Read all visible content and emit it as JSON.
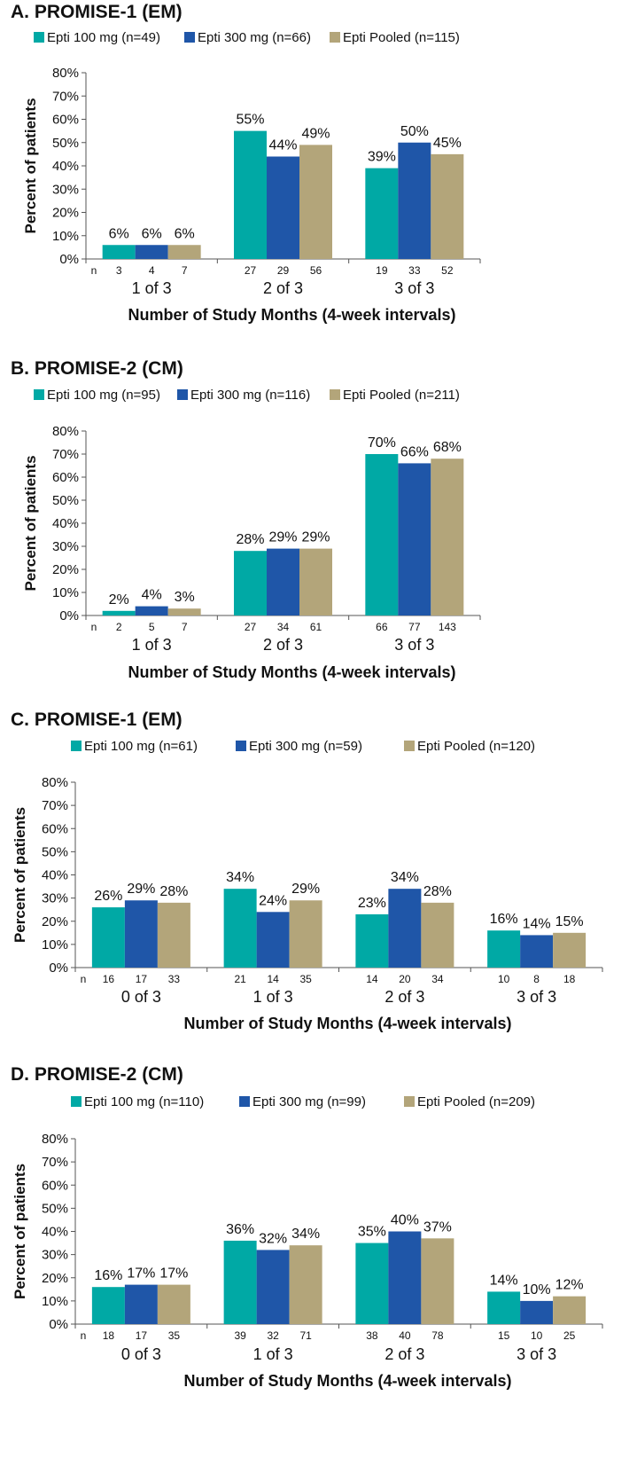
{
  "chart_data": [
    {
      "type": "bar",
      "title": "A. PROMISE-1 (EM)",
      "xlabel": "Number of Study Months (4-week intervals)",
      "ylabel": "Percent of patients",
      "ylim": [
        0,
        80
      ],
      "yticks": [
        "0%",
        "10%",
        "20%",
        "30%",
        "40%",
        "50%",
        "60%",
        "70%",
        "80%"
      ],
      "categories": [
        "1 of 3",
        "2 of 3",
        "3 of 3"
      ],
      "n_label": "n",
      "series": [
        {
          "name": "Epti 100 mg (n=49)",
          "color": "#00A9A5",
          "values": [
            6,
            55,
            39
          ],
          "labels": [
            "6%",
            "55%",
            "39%"
          ],
          "n": [
            "3",
            "27",
            "19"
          ]
        },
        {
          "name": "Epti 300 mg (n=66)",
          "color": "#1F56A8",
          "values": [
            6,
            44,
            50
          ],
          "labels": [
            "6%",
            "44%",
            "50%"
          ],
          "n": [
            "4",
            "29",
            "33"
          ]
        },
        {
          "name": "Epti Pooled (n=115)",
          "color": "#B3A57A",
          "values": [
            6,
            49,
            45
          ],
          "labels": [
            "6%",
            "49%",
            "45%"
          ],
          "n": [
            "7",
            "56",
            "52"
          ]
        }
      ]
    },
    {
      "type": "bar",
      "title": "B. PROMISE-2 (CM)",
      "xlabel": "Number of Study Months (4-week intervals)",
      "ylabel": "Percent of patients",
      "ylim": [
        0,
        80
      ],
      "yticks": [
        "0%",
        "10%",
        "20%",
        "30%",
        "40%",
        "50%",
        "60%",
        "70%",
        "80%"
      ],
      "categories": [
        "1 of 3",
        "2 of 3",
        "3 of 3"
      ],
      "n_label": "n",
      "series": [
        {
          "name": "Epti 100 mg (n=95)",
          "color": "#00A9A5",
          "values": [
            2,
            28,
            70
          ],
          "labels": [
            "2%",
            "28%",
            "70%"
          ],
          "n": [
            "2",
            "27",
            "66"
          ]
        },
        {
          "name": "Epti 300 mg (n=116)",
          "color": "#1F56A8",
          "values": [
            4,
            29,
            66
          ],
          "labels": [
            "4%",
            "29%",
            "66%"
          ],
          "n": [
            "5",
            "34",
            "77"
          ]
        },
        {
          "name": "Epti Pooled (n=211)",
          "color": "#B3A57A",
          "values": [
            3,
            29,
            68
          ],
          "labels": [
            "3%",
            "29%",
            "68%"
          ],
          "n": [
            "7",
            "61",
            "143"
          ]
        }
      ]
    },
    {
      "type": "bar",
      "title": "C. PROMISE-1 (EM)",
      "xlabel": "Number of Study Months (4-week intervals)",
      "ylabel": "Percent of patients",
      "ylim": [
        0,
        80
      ],
      "yticks": [
        "0%",
        "10%",
        "20%",
        "30%",
        "40%",
        "50%",
        "60%",
        "70%",
        "80%"
      ],
      "categories": [
        "0 of 3",
        "1 of 3",
        "2 of 3",
        "3 of 3"
      ],
      "n_label": "n",
      "series": [
        {
          "name": "Epti 100 mg (n=61)",
          "color": "#00A9A5",
          "values": [
            26,
            34,
            23,
            16
          ],
          "labels": [
            "26%",
            "34%",
            "23%",
            "16%"
          ],
          "n": [
            "16",
            "21",
            "14",
            "10"
          ]
        },
        {
          "name": "Epti 300 mg (n=59)",
          "color": "#1F56A8",
          "values": [
            29,
            24,
            34,
            14
          ],
          "labels": [
            "29%",
            "24%",
            "34%",
            "14%"
          ],
          "n": [
            "17",
            "14",
            "20",
            "8"
          ]
        },
        {
          "name": "Epti Pooled (n=120)",
          "color": "#B3A57A",
          "values": [
            28,
            29,
            28,
            15
          ],
          "labels": [
            "28%",
            "29%",
            "28%",
            "15%"
          ],
          "n": [
            "33",
            "35",
            "34",
            "18"
          ]
        }
      ]
    },
    {
      "type": "bar",
      "title": "D. PROMISE-2 (CM)",
      "xlabel": "Number of Study Months (4-week intervals)",
      "ylabel": "Percent of patients",
      "ylim": [
        0,
        80
      ],
      "yticks": [
        "0%",
        "10%",
        "20%",
        "30%",
        "40%",
        "50%",
        "60%",
        "70%",
        "80%"
      ],
      "categories": [
        "0 of 3",
        "1 of 3",
        "2 of 3",
        "3 of 3"
      ],
      "n_label": "n",
      "series": [
        {
          "name": "Epti 100 mg (n=110)",
          "color": "#00A9A5",
          "values": [
            16,
            36,
            35,
            14
          ],
          "labels": [
            "16%",
            "36%",
            "35%",
            "14%"
          ],
          "n": [
            "18",
            "39",
            "38",
            "15"
          ]
        },
        {
          "name": "Epti 300 mg (n=99)",
          "color": "#1F56A8",
          "values": [
            17,
            32,
            40,
            10
          ],
          "labels": [
            "17%",
            "32%",
            "40%",
            "10%"
          ],
          "n": [
            "17",
            "32",
            "40",
            "10"
          ]
        },
        {
          "name": "Epti Pooled (n=209)",
          "color": "#B3A57A",
          "values": [
            17,
            34,
            37,
            12
          ],
          "labels": [
            "17%",
            "34%",
            "37%",
            "12%"
          ],
          "n": [
            "35",
            "71",
            "78",
            "25"
          ]
        }
      ]
    }
  ]
}
